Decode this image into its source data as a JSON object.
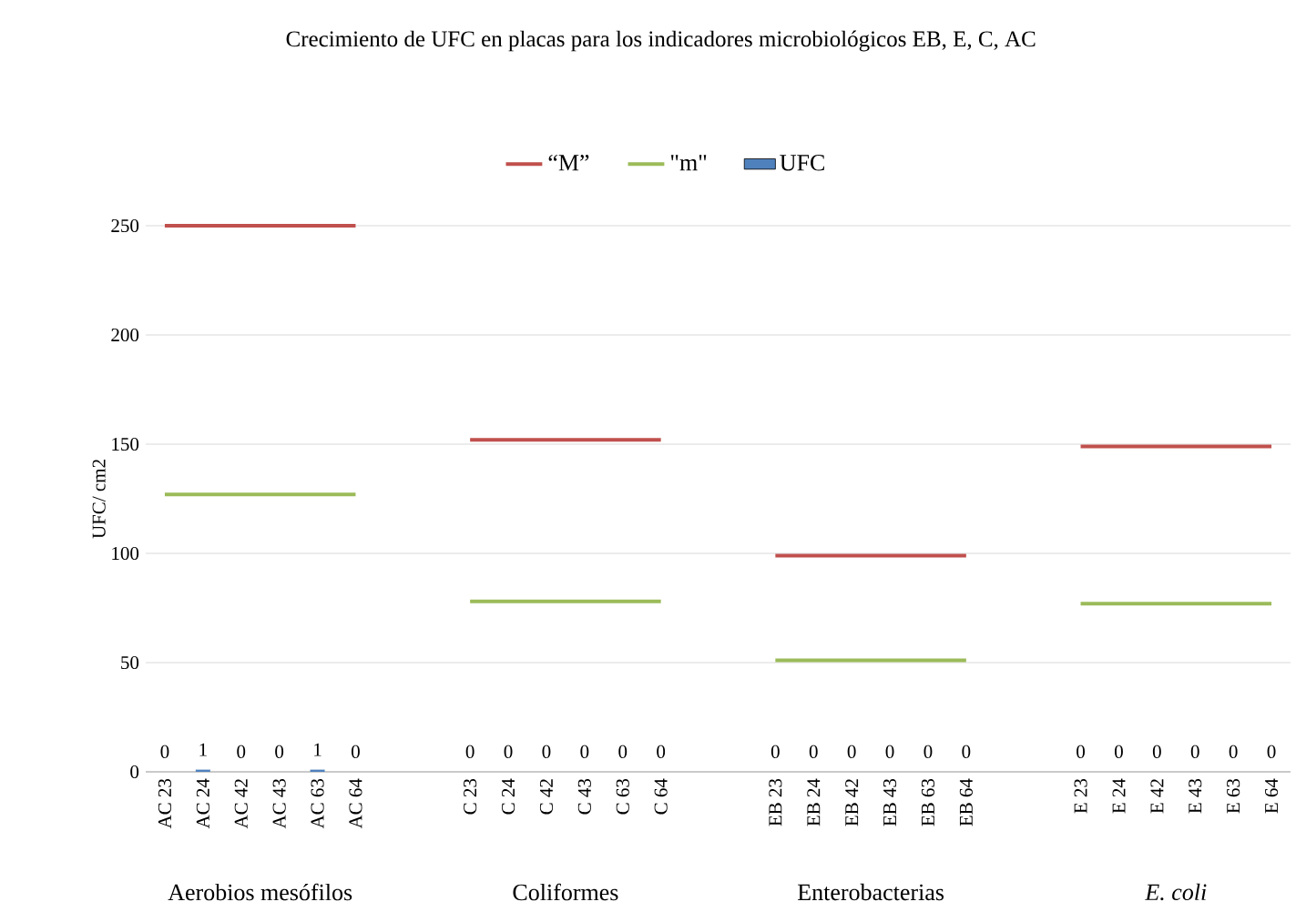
{
  "chart_data": {
    "type": "bar",
    "title": "Crecimiento de UFC en placas para los indicadores microbiológicos EB, E, C, AC",
    "ylabel": "UFC/ cm2",
    "categories": [
      "AC 23",
      "AC 24",
      "AC 42",
      "AC 43",
      "AC 63",
      "AC 64",
      null,
      null,
      "C 23",
      "C 24",
      "C 42",
      "C 43",
      "C 63",
      "C 64",
      null,
      null,
      "EB 23",
      "EB 24",
      "EB 42",
      "EB 43",
      "EB 63",
      "EB 64",
      null,
      null,
      "E 23",
      "E 24",
      "E 42",
      "E 43",
      "E 63",
      "E 64"
    ],
    "series": [
      {
        "name": "“M”",
        "type": "line",
        "color": "#c0504d",
        "values": [
          250,
          250,
          250,
          250,
          250,
          250,
          null,
          null,
          152,
          152,
          152,
          152,
          152,
          152,
          null,
          null,
          99,
          99,
          99,
          99,
          99,
          99,
          null,
          null,
          149,
          149,
          149,
          149,
          149,
          149
        ]
      },
      {
        "name": "\"m\"",
        "type": "line",
        "color": "#9bbb59",
        "values": [
          127,
          127,
          127,
          127,
          127,
          127,
          null,
          null,
          78,
          78,
          78,
          78,
          78,
          78,
          null,
          null,
          51,
          51,
          51,
          51,
          51,
          51,
          null,
          null,
          77,
          77,
          77,
          77,
          77,
          77
        ]
      },
      {
        "name": "UFC",
        "color": "#4f81bd",
        "data_labels": true,
        "values": [
          0,
          1,
          0,
          0,
          1,
          0,
          null,
          null,
          0,
          0,
          0,
          0,
          0,
          0,
          null,
          null,
          0,
          0,
          0,
          0,
          0,
          0,
          null,
          null,
          0,
          0,
          0,
          0,
          0,
          0
        ]
      }
    ],
    "ylim": [
      0,
      250
    ],
    "yticks": [
      0,
      50,
      100,
      150,
      200,
      250
    ],
    "grid": "y",
    "legend": "top",
    "annotations": [
      "Aerobios mesófilos",
      "Coliformes",
      "Enterobacterias",
      "*E. coli*"
    ]
  }
}
